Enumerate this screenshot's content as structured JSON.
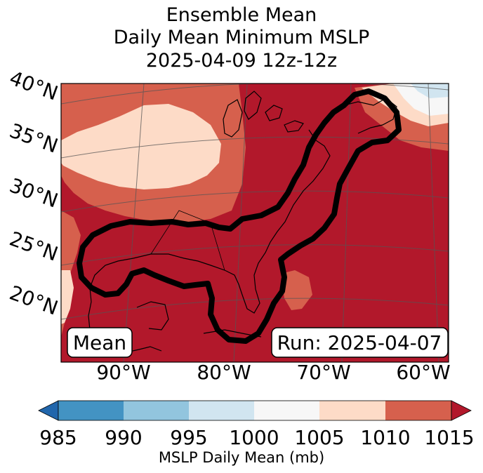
{
  "title": {
    "line1": "Ensemble Mean",
    "line2": "Daily Mean Minimum MSLP",
    "line3": "2025-04-09 12z-12z"
  },
  "map": {
    "lat_labels": [
      "40°N",
      "35°N",
      "30°N",
      "25°N",
      "20°N"
    ],
    "lon_labels": [
      "90°W",
      "80°W",
      "70°W",
      "60°W"
    ],
    "mean_box": "Mean",
    "run_box": "Run: 2025-04-07",
    "contour_color": "#000000"
  },
  "colorbar": {
    "title": "MSLP Daily Mean (mb)",
    "ticks": [
      "985",
      "990",
      "995",
      "1000",
      "1005",
      "1010",
      "1015"
    ],
    "colors": [
      "#2166ac",
      "#4393c3",
      "#92c5de",
      "#d1e5f0",
      "#f7f7f7",
      "#fddbc7",
      "#d6604d",
      "#b2182b"
    ]
  }
}
